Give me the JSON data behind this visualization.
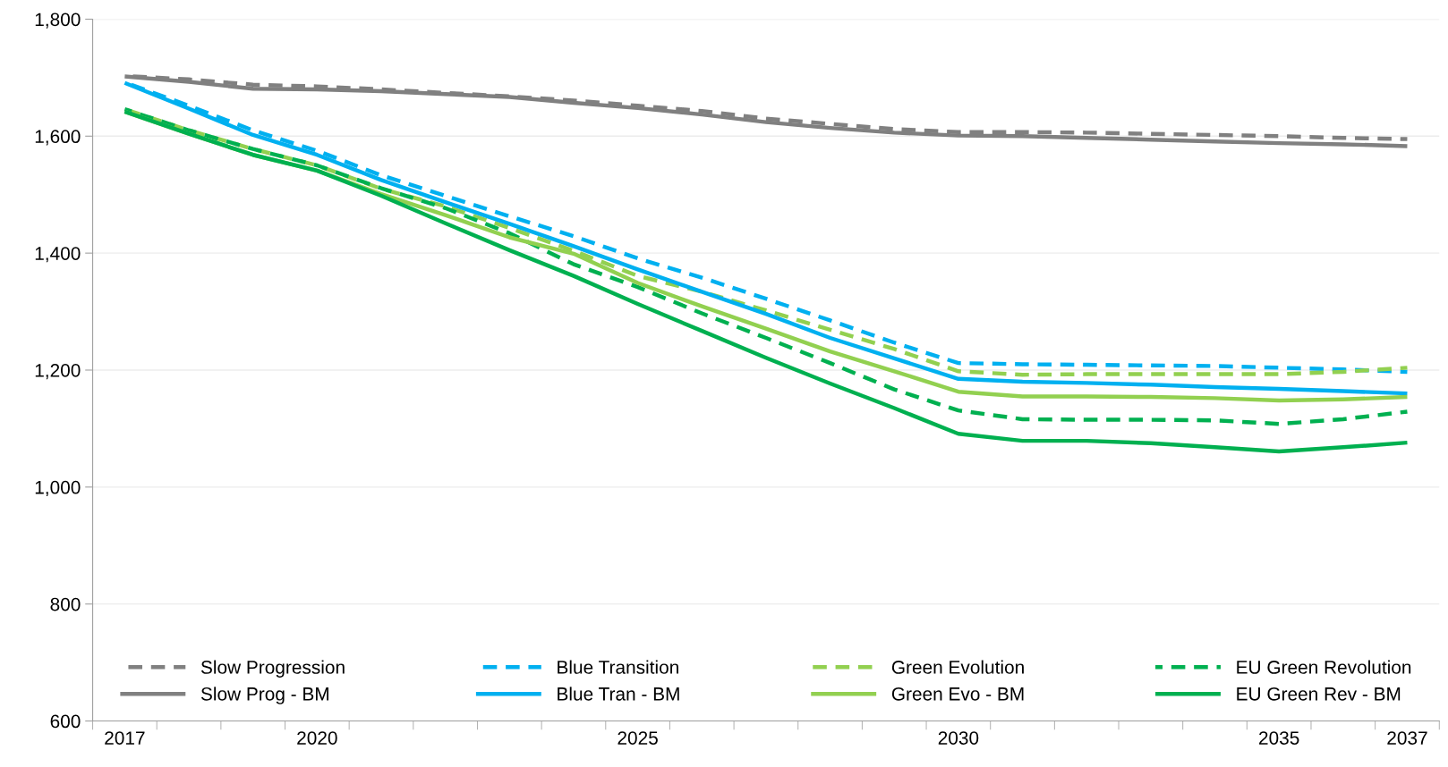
{
  "chart_data": {
    "type": "line",
    "categories": [
      "2017",
      null,
      null,
      "2020",
      null,
      null,
      null,
      null,
      "2025",
      null,
      null,
      null,
      null,
      "2030",
      null,
      null,
      null,
      null,
      "2035",
      null,
      "2037"
    ],
    "series": [
      {
        "name": "Slow Progression",
        "color": "#808080",
        "line_style": "dashed",
        "values": [
          1703,
          1697,
          1688,
          1685,
          1680,
          1674,
          1668,
          1661,
          1652,
          1643,
          1630,
          1621,
          1612,
          1607,
          1607,
          1606,
          1604,
          1602,
          1600,
          1597,
          1595
        ]
      },
      {
        "name": "Blue Transition",
        "color": "#00b0f0",
        "line_style": "dashed",
        "values": [
          1692,
          1652,
          1610,
          1575,
          1533,
          1498,
          1463,
          1429,
          1391,
          1358,
          1322,
          1285,
          1247,
          1212,
          1210,
          1209,
          1208,
          1207,
          1204,
          1201,
          1197
        ]
      },
      {
        "name": "Green Evolution",
        "color": "#92d050",
        "line_style": "dashed",
        "values": [
          1646,
          1610,
          1578,
          1550,
          1510,
          1480,
          1443,
          1404,
          1361,
          1334,
          1302,
          1269,
          1236,
          1198,
          1192,
          1193,
          1193,
          1193,
          1193,
          1197,
          1204
        ]
      },
      {
        "name": "EU Green Revolution",
        "color": "#00b050",
        "line_style": "dashed",
        "values": [
          1646,
          1610,
          1578,
          1550,
          1511,
          1477,
          1434,
          1381,
          1342,
          1297,
          1255,
          1212,
          1167,
          1131,
          1116,
          1115,
          1115,
          1114,
          1108,
          1116,
          1129
        ]
      },
      {
        "name": "Slow Prog - BM",
        "color": "#808080",
        "line_style": "solid",
        "values": [
          1702,
          1693,
          1681,
          1680,
          1677,
          1672,
          1667,
          1657,
          1648,
          1637,
          1624,
          1614,
          1606,
          1601,
          1600,
          1597,
          1594,
          1591,
          1588,
          1586,
          1583
        ]
      },
      {
        "name": "Blue Tran - BM",
        "color": "#00b0f0",
        "line_style": "solid",
        "values": [
          1691,
          1647,
          1602,
          1568,
          1525,
          1487,
          1450,
          1412,
          1372,
          1334,
          1296,
          1255,
          1220,
          1185,
          1180,
          1178,
          1175,
          1171,
          1168,
          1164,
          1160
        ]
      },
      {
        "name": "Green Evo - BM",
        "color": "#92d050",
        "line_style": "solid",
        "values": [
          1642,
          1604,
          1568,
          1541,
          1501,
          1465,
          1427,
          1399,
          1349,
          1309,
          1271,
          1232,
          1198,
          1163,
          1155,
          1155,
          1154,
          1152,
          1148,
          1150,
          1154
        ]
      },
      {
        "name": "EU Green Rev - BM",
        "color": "#00b050",
        "line_style": "solid",
        "values": [
          1642,
          1604,
          1568,
          1541,
          1498,
          1451,
          1405,
          1361,
          1313,
          1267,
          1221,
          1177,
          1135,
          1091,
          1079,
          1079,
          1075,
          1068,
          1061,
          1068,
          1076
        ]
      }
    ],
    "ylim": [
      600,
      1800
    ],
    "yticks": [
      {
        "value": 600,
        "label": "600"
      },
      {
        "value": 800,
        "label": "800"
      },
      {
        "value": 1000,
        "label": "1,000"
      },
      {
        "value": 1200,
        "label": "1,200"
      },
      {
        "value": 1400,
        "label": "1,400"
      },
      {
        "value": 1600,
        "label": "1,600"
      },
      {
        "value": 1800,
        "label": "1,800"
      }
    ],
    "grid": "y",
    "legend": "bottom",
    "marker": "none"
  }
}
